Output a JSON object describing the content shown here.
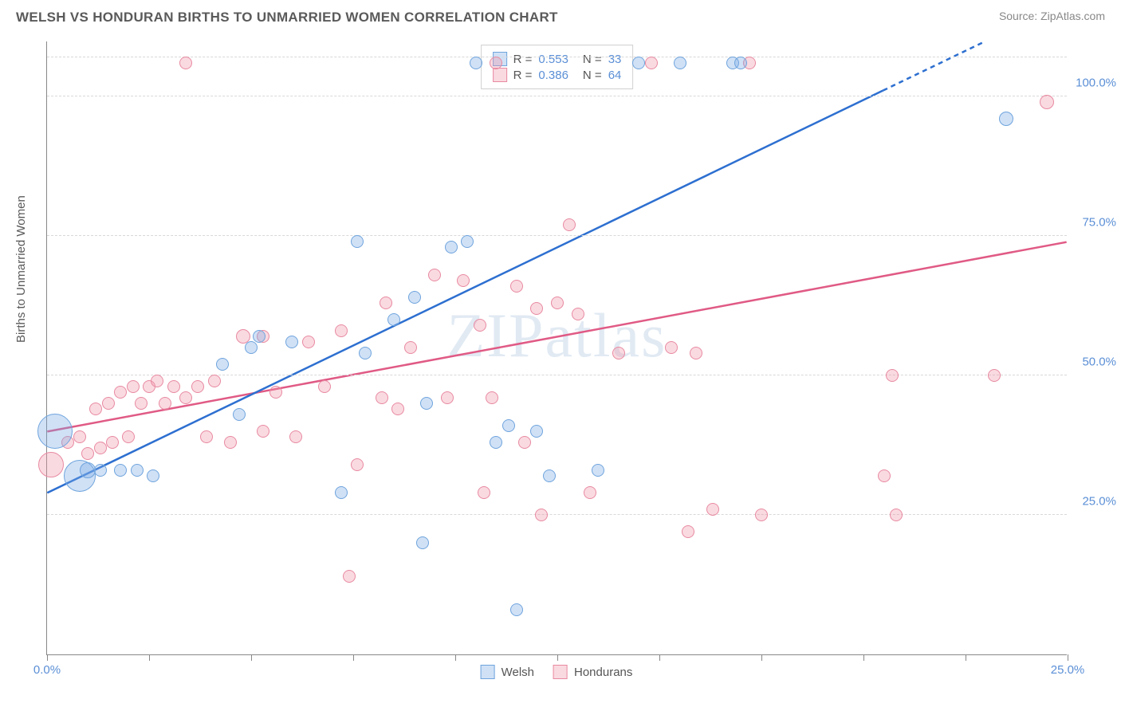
{
  "header": {
    "title": "WELSH VS HONDURAN BIRTHS TO UNMARRIED WOMEN CORRELATION CHART",
    "source": "Source: ZipAtlas.com"
  },
  "axes": {
    "y_label": "Births to Unmarried Women",
    "x_min": 0,
    "x_max": 25,
    "y_min": 0,
    "y_max": 110,
    "y_ticks": [
      25,
      50,
      75,
      100
    ],
    "y_tick_labels": [
      "25.0%",
      "50.0%",
      "75.0%",
      "100.0%"
    ],
    "x_ticks": [
      0,
      2.5,
      5,
      7.5,
      10,
      12.5,
      15,
      17.5,
      20,
      22.5,
      25
    ],
    "x_visible_labels": {
      "0": "0.0%",
      "25": "25.0%"
    }
  },
  "colors": {
    "series_a_fill": "rgba(120,170,230,0.35)",
    "series_a_stroke": "#6fa4dd",
    "series_b_fill": "rgba(240,150,170,0.35)",
    "series_b_stroke": "#e88aa1",
    "trend_a": "#2d6fd0",
    "trend_b": "#e05a85",
    "tick_label": "#5b8fd6",
    "grid": "#d8d8d8",
    "watermark": "rgba(120,160,200,0.22)"
  },
  "watermark": "ZIPatlas",
  "stats": {
    "a": {
      "R": "0.553",
      "N": "33"
    },
    "b": {
      "R": "0.386",
      "N": "64"
    }
  },
  "legend": {
    "a": "Welsh",
    "b": "Hondurans"
  },
  "trend_lines": {
    "a": {
      "x1": 0,
      "y1": 29,
      "x2": 23,
      "y2": 110,
      "dash_from_x": 20.5
    },
    "b": {
      "x1": 0,
      "y1": 40,
      "x2": 25,
      "y2": 74
    }
  },
  "series_a": [
    {
      "x": 0.2,
      "y": 40,
      "r": 22
    },
    {
      "x": 0.8,
      "y": 32,
      "r": 20
    },
    {
      "x": 1.0,
      "y": 33,
      "r": 10
    },
    {
      "x": 1.3,
      "y": 33,
      "r": 8
    },
    {
      "x": 1.8,
      "y": 33,
      "r": 8
    },
    {
      "x": 2.2,
      "y": 33,
      "r": 8
    },
    {
      "x": 2.6,
      "y": 32,
      "r": 8
    },
    {
      "x": 4.3,
      "y": 52,
      "r": 8
    },
    {
      "x": 4.7,
      "y": 43,
      "r": 8
    },
    {
      "x": 5.0,
      "y": 55,
      "r": 8
    },
    {
      "x": 5.2,
      "y": 57,
      "r": 8
    },
    {
      "x": 6.0,
      "y": 56,
      "r": 8
    },
    {
      "x": 7.2,
      "y": 29,
      "r": 8
    },
    {
      "x": 7.6,
      "y": 74,
      "r": 8
    },
    {
      "x": 7.8,
      "y": 54,
      "r": 8
    },
    {
      "x": 8.5,
      "y": 60,
      "r": 8
    },
    {
      "x": 9.0,
      "y": 64,
      "r": 8
    },
    {
      "x": 9.3,
      "y": 45,
      "r": 8
    },
    {
      "x": 9.2,
      "y": 20,
      "r": 8
    },
    {
      "x": 9.9,
      "y": 73,
      "r": 8
    },
    {
      "x": 10.3,
      "y": 74,
      "r": 8
    },
    {
      "x": 10.5,
      "y": 106,
      "r": 8
    },
    {
      "x": 11.0,
      "y": 38,
      "r": 8
    },
    {
      "x": 11.3,
      "y": 41,
      "r": 8
    },
    {
      "x": 11.5,
      "y": 8,
      "r": 8
    },
    {
      "x": 12.0,
      "y": 40,
      "r": 8
    },
    {
      "x": 12.3,
      "y": 32,
      "r": 8
    },
    {
      "x": 13.5,
      "y": 33,
      "r": 8
    },
    {
      "x": 14.5,
      "y": 106,
      "r": 8
    },
    {
      "x": 15.5,
      "y": 106,
      "r": 8
    },
    {
      "x": 16.8,
      "y": 106,
      "r": 8
    },
    {
      "x": 17.0,
      "y": 106,
      "r": 8
    },
    {
      "x": 23.5,
      "y": 96,
      "r": 9
    }
  ],
  "series_b": [
    {
      "x": 0.1,
      "y": 34,
      "r": 16
    },
    {
      "x": 0.5,
      "y": 38,
      "r": 8
    },
    {
      "x": 0.8,
      "y": 39,
      "r": 8
    },
    {
      "x": 1.0,
      "y": 36,
      "r": 8
    },
    {
      "x": 1.2,
      "y": 44,
      "r": 8
    },
    {
      "x": 1.3,
      "y": 37,
      "r": 8
    },
    {
      "x": 1.5,
      "y": 45,
      "r": 8
    },
    {
      "x": 1.6,
      "y": 38,
      "r": 8
    },
    {
      "x": 1.8,
      "y": 47,
      "r": 8
    },
    {
      "x": 2.0,
      "y": 39,
      "r": 8
    },
    {
      "x": 2.1,
      "y": 48,
      "r": 8
    },
    {
      "x": 2.3,
      "y": 45,
      "r": 8
    },
    {
      "x": 2.5,
      "y": 48,
      "r": 8
    },
    {
      "x": 2.7,
      "y": 49,
      "r": 8
    },
    {
      "x": 2.9,
      "y": 45,
      "r": 8
    },
    {
      "x": 3.1,
      "y": 48,
      "r": 8
    },
    {
      "x": 3.4,
      "y": 46,
      "r": 8
    },
    {
      "x": 3.4,
      "y": 106,
      "r": 8
    },
    {
      "x": 3.7,
      "y": 48,
      "r": 8
    },
    {
      "x": 3.9,
      "y": 39,
      "r": 8
    },
    {
      "x": 4.1,
      "y": 49,
      "r": 8
    },
    {
      "x": 4.5,
      "y": 38,
      "r": 8
    },
    {
      "x": 4.8,
      "y": 57,
      "r": 9
    },
    {
      "x": 5.3,
      "y": 40,
      "r": 8
    },
    {
      "x": 5.3,
      "y": 57,
      "r": 8
    },
    {
      "x": 5.6,
      "y": 47,
      "r": 8
    },
    {
      "x": 6.1,
      "y": 39,
      "r": 8
    },
    {
      "x": 6.4,
      "y": 56,
      "r": 8
    },
    {
      "x": 6.8,
      "y": 48,
      "r": 8
    },
    {
      "x": 7.2,
      "y": 58,
      "r": 8
    },
    {
      "x": 7.4,
      "y": 14,
      "r": 8
    },
    {
      "x": 7.6,
      "y": 34,
      "r": 8
    },
    {
      "x": 8.2,
      "y": 46,
      "r": 8
    },
    {
      "x": 8.3,
      "y": 63,
      "r": 8
    },
    {
      "x": 8.6,
      "y": 44,
      "r": 8
    },
    {
      "x": 8.9,
      "y": 55,
      "r": 8
    },
    {
      "x": 9.5,
      "y": 68,
      "r": 8
    },
    {
      "x": 9.8,
      "y": 46,
      "r": 8
    },
    {
      "x": 10.2,
      "y": 67,
      "r": 8
    },
    {
      "x": 10.6,
      "y": 59,
      "r": 8
    },
    {
      "x": 10.7,
      "y": 29,
      "r": 8
    },
    {
      "x": 10.9,
      "y": 46,
      "r": 8
    },
    {
      "x": 11.0,
      "y": 106,
      "r": 8
    },
    {
      "x": 11.5,
      "y": 66,
      "r": 8
    },
    {
      "x": 11.7,
      "y": 38,
      "r": 8
    },
    {
      "x": 12.0,
      "y": 62,
      "r": 8
    },
    {
      "x": 12.1,
      "y": 25,
      "r": 8
    },
    {
      "x": 12.5,
      "y": 63,
      "r": 8
    },
    {
      "x": 12.8,
      "y": 77,
      "r": 8
    },
    {
      "x": 13.0,
      "y": 61,
      "r": 8
    },
    {
      "x": 13.3,
      "y": 29,
      "r": 8
    },
    {
      "x": 14.0,
      "y": 54,
      "r": 8
    },
    {
      "x": 14.8,
      "y": 106,
      "r": 8
    },
    {
      "x": 15.3,
      "y": 55,
      "r": 8
    },
    {
      "x": 15.7,
      "y": 22,
      "r": 8
    },
    {
      "x": 15.9,
      "y": 54,
      "r": 8
    },
    {
      "x": 16.3,
      "y": 26,
      "r": 8
    },
    {
      "x": 17.2,
      "y": 106,
      "r": 8
    },
    {
      "x": 17.5,
      "y": 25,
      "r": 8
    },
    {
      "x": 20.5,
      "y": 32,
      "r": 8
    },
    {
      "x": 20.7,
      "y": 50,
      "r": 8
    },
    {
      "x": 20.8,
      "y": 25,
      "r": 8
    },
    {
      "x": 23.2,
      "y": 50,
      "r": 8
    },
    {
      "x": 24.5,
      "y": 99,
      "r": 9
    }
  ]
}
